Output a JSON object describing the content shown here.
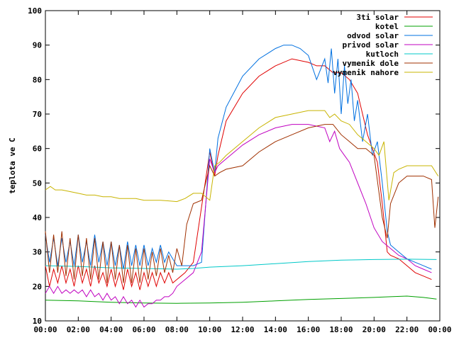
{
  "chart_data": {
    "type": "line",
    "title": "",
    "xlabel": "",
    "ylabel": "teplota ve C",
    "xlim": [
      0,
      24
    ],
    "ylim": [
      10,
      100
    ],
    "grid": false,
    "legend_position": "top-right",
    "x_ticks": [
      "00:00",
      "02:00",
      "04:00",
      "06:00",
      "08:00",
      "10:00",
      "12:00",
      "14:00",
      "16:00",
      "18:00",
      "20:00",
      "22:00",
      "00:00"
    ],
    "y_ticks": [
      "10",
      "20",
      "30",
      "40",
      "50",
      "60",
      "70",
      "80",
      "90",
      "100"
    ],
    "series": [
      {
        "name": "3ti solar",
        "color": "#e00000",
        "x": [
          0,
          0.25,
          0.5,
          0.75,
          1,
          1.25,
          1.5,
          1.75,
          2,
          2.25,
          2.5,
          2.75,
          3,
          3.25,
          3.5,
          3.75,
          4,
          4.25,
          4.5,
          4.75,
          5,
          5.25,
          5.5,
          5.75,
          6,
          6.25,
          6.5,
          6.75,
          7,
          7.25,
          7.5,
          7.75,
          8,
          8.5,
          9,
          9.5,
          10,
          10.3,
          10.5,
          11,
          12,
          13,
          14,
          15,
          16,
          16.5,
          17,
          17.5,
          18,
          18.5,
          19,
          19.3,
          19.6,
          19.9,
          20.2,
          20.5,
          20.8,
          21,
          21.5,
          22,
          22.5,
          23,
          23.5
        ],
        "y": [
          26,
          20,
          25,
          21,
          26,
          21,
          25,
          20,
          26,
          21,
          25,
          20,
          26,
          21,
          24,
          20,
          25,
          20,
          24,
          19,
          25,
          20,
          24,
          19,
          24,
          20,
          24,
          20,
          24,
          21,
          24,
          21,
          22,
          24,
          27,
          43,
          59,
          52,
          58,
          68,
          76,
          81,
          84,
          86,
          85,
          84,
          84,
          82,
          82,
          80,
          76,
          70,
          64,
          60,
          56,
          44,
          30,
          29,
          28,
          26,
          24,
          23,
          22
        ]
      },
      {
        "name": "kotel",
        "color": "#00a000",
        "x": [
          0,
          2,
          4,
          6,
          8,
          10,
          12,
          14,
          16,
          18,
          20,
          21,
          22,
          23,
          23.8
        ],
        "y": [
          16,
          15.8,
          15.4,
          15.2,
          15.1,
          15.2,
          15.4,
          15.8,
          16.2,
          16.5,
          16.8,
          17,
          17.2,
          16.8,
          16.3
        ]
      },
      {
        "name": "odvod solar",
        "color": "#0070e0",
        "x": [
          0,
          0.25,
          0.5,
          0.75,
          1,
          1.25,
          1.5,
          1.75,
          2,
          2.25,
          2.5,
          2.75,
          3,
          3.25,
          3.5,
          3.75,
          4,
          4.25,
          4.5,
          4.75,
          5,
          5.25,
          5.5,
          5.75,
          6,
          6.25,
          6.5,
          6.75,
          7,
          7.25,
          7.5,
          7.75,
          8,
          8.5,
          9,
          9.5,
          10,
          10.3,
          10.5,
          11,
          12,
          13,
          14,
          14.5,
          15,
          15.5,
          16,
          16.5,
          17,
          17.2,
          17.4,
          17.6,
          17.8,
          18,
          18.2,
          18.4,
          18.6,
          18.8,
          19,
          19.3,
          19.6,
          19.9,
          20.2,
          20.5,
          20.8,
          21,
          21.5,
          22,
          22.5,
          23,
          23.5
        ],
        "y": [
          35,
          27,
          34,
          26,
          34,
          27,
          33,
          26,
          35,
          27,
          33,
          26,
          35,
          27,
          33,
          26,
          33,
          26,
          32,
          25,
          33,
          26,
          32,
          26,
          32,
          26,
          31,
          27,
          32,
          27,
          30,
          28,
          26,
          26,
          26,
          27,
          60,
          53,
          63,
          72,
          81,
          86,
          89,
          90,
          90,
          89,
          87,
          80,
          86,
          79,
          89,
          76,
          86,
          70,
          84,
          73,
          80,
          68,
          74,
          62,
          70,
          58,
          62,
          50,
          36,
          32,
          30,
          28,
          27,
          26,
          25
        ]
      },
      {
        "name": "privod solar",
        "color": "#c000c0",
        "x": [
          0,
          0.25,
          0.5,
          0.75,
          1,
          1.25,
          1.5,
          1.75,
          2,
          2.25,
          2.5,
          2.75,
          3,
          3.25,
          3.5,
          3.75,
          4,
          4.25,
          4.5,
          4.75,
          5,
          5.25,
          5.5,
          5.75,
          6,
          6.25,
          6.5,
          6.75,
          7,
          7.25,
          7.5,
          7.75,
          8,
          8.5,
          9,
          9.5,
          10,
          10.3,
          10.5,
          11,
          12,
          13,
          14,
          15,
          16,
          17,
          17.3,
          17.6,
          17.9,
          18.2,
          18.5,
          19,
          19.5,
          20,
          20.5,
          21,
          21.5,
          22,
          22.5,
          23,
          23.5
        ],
        "y": [
          18,
          20,
          18,
          20,
          18,
          19,
          18,
          19,
          18,
          19,
          17,
          19,
          17,
          18,
          16,
          18,
          16,
          17,
          15,
          17,
          15,
          16,
          14,
          16,
          14,
          15,
          15,
          16,
          16,
          17,
          17,
          18,
          20,
          22,
          24,
          30,
          57,
          53,
          55,
          57,
          61,
          64,
          66,
          67,
          67,
          66,
          62,
          65,
          60,
          58,
          56,
          50,
          44,
          37,
          33,
          31,
          29,
          28,
          26,
          25,
          24
        ]
      },
      {
        "name": "kutloch",
        "color": "#00c8c8",
        "x": [
          0,
          2,
          4,
          6,
          8,
          9,
          10,
          12,
          14,
          16,
          18,
          20,
          22,
          23.8
        ],
        "y": [
          26,
          25.8,
          25.4,
          25.2,
          25,
          25.2,
          25.6,
          26,
          26.6,
          27.2,
          27.6,
          27.8,
          27.9,
          27.8
        ]
      },
      {
        "name": "vymenik dole",
        "color": "#a03000",
        "x": [
          0,
          0.25,
          0.5,
          0.75,
          1,
          1.25,
          1.5,
          1.75,
          2,
          2.25,
          2.5,
          2.75,
          3,
          3.25,
          3.5,
          3.75,
          4,
          4.25,
          4.5,
          4.75,
          5,
          5.25,
          5.5,
          5.75,
          6,
          6.25,
          6.5,
          6.75,
          7,
          7.25,
          7.5,
          7.75,
          8,
          8.3,
          8.6,
          9,
          9.5,
          10,
          10.3,
          10.6,
          11,
          12,
          13,
          14,
          15,
          16,
          17,
          17.5,
          18,
          18.5,
          19,
          19.5,
          20,
          20.5,
          20.8,
          21,
          21.5,
          22,
          22.5,
          23,
          23.5,
          23.7,
          23.9
        ],
        "y": [
          36,
          24,
          35,
          24,
          36,
          23,
          34,
          22,
          35,
          23,
          34,
          22,
          34,
          22,
          33,
          21,
          33,
          22,
          32,
          21,
          32,
          21,
          31,
          21,
          31,
          22,
          30,
          23,
          31,
          24,
          29,
          24,
          31,
          26,
          38,
          44,
          45,
          55,
          52,
          53,
          54,
          55,
          59,
          62,
          64,
          66,
          67,
          67,
          64,
          62,
          60,
          60,
          58,
          40,
          34,
          44,
          50,
          52,
          52,
          52,
          51,
          37,
          46
        ]
      },
      {
        "name": "vymenik nahore",
        "color": "#c8b400",
        "x": [
          0,
          0.3,
          0.6,
          1,
          1.5,
          2,
          2.5,
          3,
          3.5,
          4,
          4.5,
          5,
          5.5,
          6,
          6.5,
          7,
          7.5,
          8,
          8.5,
          9,
          9.5,
          10,
          10.3,
          10.6,
          11,
          12,
          13,
          14,
          15,
          16,
          17,
          17.3,
          17.6,
          18,
          18.5,
          19,
          19.5,
          20,
          20.3,
          20.6,
          20.9,
          21.2,
          21.5,
          22,
          22.5,
          23,
          23.5,
          23.9
        ],
        "y": [
          48,
          49,
          48,
          48,
          47.5,
          47,
          46.5,
          46.5,
          46,
          46,
          45.5,
          45.5,
          45.5,
          45,
          45,
          45,
          44.8,
          44.6,
          45.5,
          47,
          47,
          45,
          55,
          56,
          58,
          62,
          66,
          69,
          70,
          71,
          71,
          69,
          70,
          68,
          67,
          64,
          62,
          60,
          58,
          62,
          45,
          53,
          54,
          55,
          55,
          55,
          55,
          52
        ]
      }
    ]
  }
}
